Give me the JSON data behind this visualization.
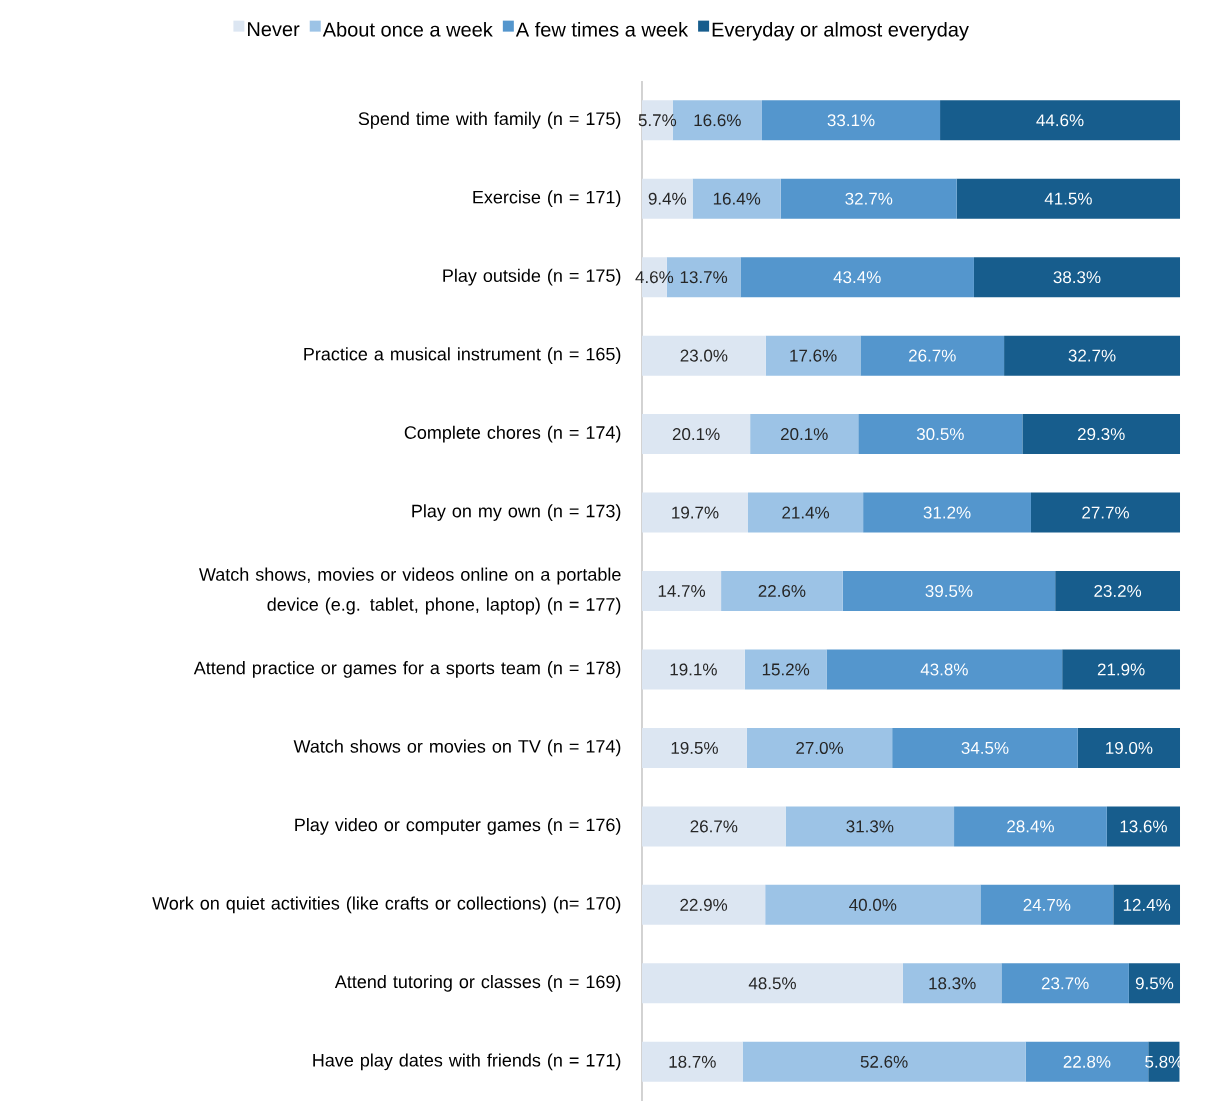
{
  "chart_data": {
    "type": "bar",
    "orientation": "horizontal",
    "stacked": true,
    "legend": "top",
    "tick_labels": "y",
    "xlim": [
      0,
      100
    ],
    "categories": [
      "Spend time with family (n = 175)",
      "Exercise (n = 171)",
      "Play outside (n = 175)",
      "Practice a musical instrument (n = 165)",
      "Complete chores (n = 174)",
      "Play on my own (n = 173)",
      "Watch shows, movies or videos online on a portable device (e.g. tablet, phone, laptop) (n = 177)",
      "Attend practice or games for a sports team (n = 178)",
      "Watch shows or movies on TV (n = 174)",
      "Play video or computer games (n = 176)",
      "Work on quiet activities (like crafts or collections) (n= 170)",
      "Attend tutoring or classes (n = 169)",
      "Have play dates with friends (n = 171)"
    ],
    "series": [
      {
        "name": "Never",
        "color": "#dce6f2",
        "values": [
          5.7,
          9.4,
          4.6,
          23.0,
          20.1,
          19.7,
          14.7,
          19.1,
          19.5,
          26.7,
          22.9,
          48.5,
          18.7
        ],
        "value_labels": [
          "5.7%",
          "9.4%",
          "4.6%",
          "23.0%",
          "20.1%",
          "19.7%",
          "14.7%",
          "19.1%",
          "19.5%",
          "26.7%",
          "22.9%",
          "48.5%",
          "18.7%"
        ]
      },
      {
        "name": "About once a week",
        "color": "#9cc3e6",
        "values": [
          16.6,
          16.4,
          13.7,
          17.6,
          20.1,
          21.4,
          22.6,
          15.2,
          27.0,
          31.3,
          40.0,
          18.3,
          52.6
        ],
        "value_labels": [
          "16.6%",
          "16.4%",
          "13.7%",
          "17.6%",
          "20.1%",
          "21.4%",
          "22.6%",
          "15.2%",
          "27.0%",
          "31.3%",
          "40.0%",
          "18.3%",
          "52.6%"
        ]
      },
      {
        "name": "A few times a week",
        "color": "#5496cd",
        "values": [
          33.1,
          32.7,
          43.4,
          26.7,
          30.5,
          31.2,
          39.5,
          43.8,
          34.5,
          28.4,
          24.7,
          23.7,
          22.8
        ],
        "value_labels": [
          "33.1%",
          "32.7%",
          "43.4%",
          "26.7%",
          "30.5%",
          "31.2%",
          "39.5%",
          "43.8%",
          "34.5%",
          "28.4%",
          "24.7%",
          "23.7%",
          "22.8%"
        ]
      },
      {
        "name": "Everyday or almost everyday",
        "color": "#175d8d",
        "values": [
          44.6,
          41.5,
          38.3,
          32.7,
          29.3,
          27.7,
          23.2,
          21.9,
          19.0,
          13.6,
          12.4,
          9.5,
          5.8
        ],
        "value_labels": [
          "44.6%",
          "41.5%",
          "38.3%",
          "32.7%",
          "29.3%",
          "27.7%",
          "23.2%",
          "21.9%",
          "19.0%",
          "13.6%",
          "12.4%",
          "9.5%",
          "5.8%"
        ]
      }
    ]
  }
}
